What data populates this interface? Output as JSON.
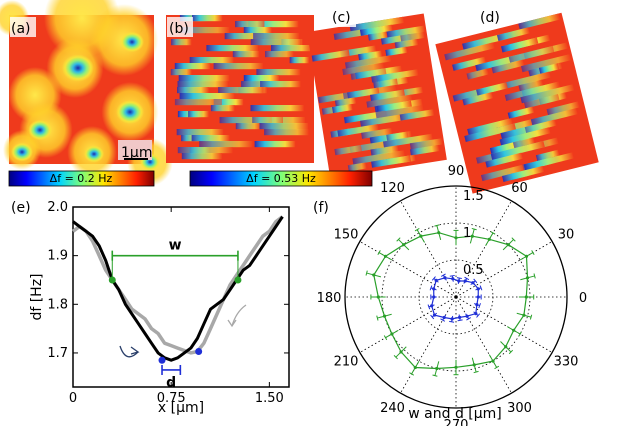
{
  "panels": {
    "a": {
      "label": "(a)",
      "scale_bar": "1µm"
    },
    "b": {
      "label": "(b)"
    },
    "c": {
      "label": "(c)"
    },
    "d": {
      "label": "(d)"
    },
    "e": {
      "label": "(e)"
    },
    "f": {
      "label": "(f)"
    }
  },
  "colorbars": [
    {
      "label": "Δf = 0.2 Hz"
    },
    {
      "label": "Δf = 0.53 Hz"
    }
  ],
  "colors": {
    "black_curve": "#000000",
    "gray_curve": "#a8a8a8",
    "w_marker": "#2aa02a",
    "d_marker": "#1f2fd6"
  },
  "chart_data": [
    {
      "type": "line",
      "panel": "(e)",
      "xlabel": "x [µm]",
      "ylabel": "df [Hz]",
      "xlim": [
        0,
        1.65
      ],
      "ylim": [
        1.63,
        2.0
      ],
      "xticks": [
        "0",
        "0.75",
        "1.50"
      ],
      "xtick_values": [
        0,
        0.75,
        1.5
      ],
      "yticks": [
        "1.7",
        "1.8",
        "1.9",
        "2.0"
      ],
      "ytick_values": [
        1.7,
        1.8,
        1.9,
        2.0
      ],
      "annotations": {
        "w": "w",
        "d": "d"
      },
      "w_marker": {
        "x1": 0.3,
        "x2": 1.26,
        "y": 1.9,
        "points": [
          [
            0.3,
            1.85
          ],
          [
            1.26,
            1.85
          ]
        ]
      },
      "d_marker": {
        "x1": 0.68,
        "x2": 0.82,
        "y": 1.665,
        "points": [
          [
            0.68,
            1.685
          ],
          [
            0.96,
            1.703
          ]
        ]
      },
      "series": [
        {
          "x": [
            0,
            0.05,
            0.1,
            0.15,
            0.2,
            0.25,
            0.3,
            0.35,
            0.4,
            0.45,
            0.5,
            0.55,
            0.6,
            0.65,
            0.7,
            0.75,
            0.8,
            0.85,
            0.9,
            0.95,
            1.0,
            1.05,
            1.1,
            1.15,
            1.2,
            1.25,
            1.3,
            1.35,
            1.4,
            1.45,
            1.5,
            1.55,
            1.6
          ],
          "y": [
            1.97,
            1.96,
            1.95,
            1.94,
            1.92,
            1.89,
            1.85,
            1.83,
            1.8,
            1.78,
            1.76,
            1.74,
            1.72,
            1.7,
            1.69,
            1.685,
            1.69,
            1.7,
            1.71,
            1.73,
            1.76,
            1.79,
            1.8,
            1.81,
            1.83,
            1.85,
            1.87,
            1.88,
            1.9,
            1.92,
            1.94,
            1.96,
            1.98
          ]
        },
        {
          "x": [
            0,
            0.05,
            0.1,
            0.15,
            0.2,
            0.25,
            0.3,
            0.35,
            0.4,
            0.45,
            0.5,
            0.55,
            0.6,
            0.65,
            0.7,
            0.75,
            0.8,
            0.85,
            0.9,
            0.95,
            1.0,
            1.05,
            1.1,
            1.15,
            1.2,
            1.25,
            1.3,
            1.35,
            1.4,
            1.45,
            1.5,
            1.55,
            1.6
          ],
          "y": [
            1.95,
            1.96,
            1.95,
            1.93,
            1.9,
            1.87,
            1.85,
            1.83,
            1.81,
            1.79,
            1.78,
            1.77,
            1.75,
            1.74,
            1.72,
            1.715,
            1.71,
            1.705,
            1.7,
            1.703,
            1.72,
            1.75,
            1.78,
            1.81,
            1.84,
            1.86,
            1.88,
            1.9,
            1.92,
            1.94,
            1.95,
            1.97,
            1.98
          ]
        }
      ]
    },
    {
      "type": "scatter",
      "panel": "(f)",
      "subtype": "polar",
      "xlabel": "w and d [µm]",
      "rlim": [
        0,
        1.5
      ],
      "rticks": [
        "0.5",
        "1",
        "1.5"
      ],
      "rtick_values": [
        0.5,
        1.0,
        1.5
      ],
      "angle_ticks": [
        "0",
        "30",
        "60",
        "90",
        "120",
        "150",
        "180",
        "210",
        "240",
        "270",
        "300",
        "330"
      ],
      "angle_tick_values": [
        0,
        30,
        60,
        90,
        120,
        150,
        180,
        210,
        240,
        270,
        300,
        330
      ],
      "series": [
        {
          "angles": [
            0,
            15,
            30,
            45,
            60,
            75,
            90,
            105,
            120,
            135,
            150,
            165,
            180,
            195,
            210,
            225,
            240,
            255,
            270,
            285,
            300,
            315,
            330,
            345
          ],
          "r": [
            0.95,
            1.0,
            1.1,
            1.0,
            0.9,
            0.85,
            0.8,
            0.9,
            0.95,
            1.0,
            1.1,
            1.15,
            1.05,
            1.0,
            1.0,
            1.05,
            1.1,
            1.0,
            0.95,
            0.95,
            1.0,
            0.95,
            0.9,
            0.95
          ]
        },
        {
          "angles": [
            0,
            20,
            40,
            60,
            80,
            100,
            120,
            140,
            160,
            180,
            200,
            220,
            240,
            260,
            280,
            300,
            320,
            340
          ],
          "r": [
            0.3,
            0.32,
            0.3,
            0.25,
            0.22,
            0.25,
            0.3,
            0.35,
            0.32,
            0.3,
            0.35,
            0.38,
            0.32,
            0.3,
            0.28,
            0.3,
            0.35,
            0.3
          ]
        }
      ]
    }
  ]
}
